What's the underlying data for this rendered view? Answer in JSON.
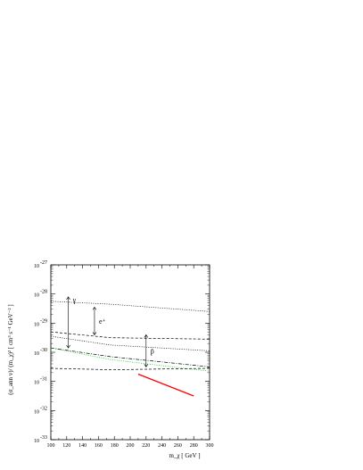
{
  "chart_data": {
    "type": "line",
    "xlabel": "m_χ [ GeV ]",
    "ylabel": "(σ_ann v)/ (m_χ)² [ cm³ s⁻¹ GeV⁻² ]",
    "xlim": [
      100,
      300
    ],
    "ylim_log10": [
      -33,
      -27
    ],
    "x_ticks": [
      "100",
      "120",
      "140",
      "160",
      "180",
      "200",
      "220",
      "240",
      "260",
      "280",
      "300"
    ],
    "y_ticks": [
      {
        "base": "10",
        "exp": "-27",
        "v": -27
      },
      {
        "base": "10",
        "exp": "-28",
        "v": -28
      },
      {
        "base": "10",
        "exp": "-29",
        "v": -29
      },
      {
        "base": "10",
        "exp": "-30",
        "v": -30
      },
      {
        "base": "10",
        "exp": "-31",
        "v": -31
      },
      {
        "base": "10",
        "exp": "-32",
        "v": -32
      },
      {
        "base": "10",
        "exp": "-33",
        "v": -33
      }
    ],
    "grid": false,
    "series": [
      {
        "style": "dotted",
        "color": "#000000",
        "x": [
          100,
          175,
          300
        ],
        "log10_y": [
          -28.25,
          -28.35,
          -28.6
        ]
      },
      {
        "style": "dashed",
        "color": "#000000",
        "x": [
          100,
          175,
          300
        ],
        "log10_y": [
          -29.3,
          -29.5,
          -29.55
        ]
      },
      {
        "style": "dotted",
        "color": "#000000",
        "x": [
          100,
          175,
          300
        ],
        "log10_y": [
          -29.45,
          -29.75,
          -29.95
        ]
      },
      {
        "style": "dash-dot",
        "color": "#000000",
        "x": [
          100,
          175,
          300
        ],
        "log10_y": [
          -29.85,
          -30.15,
          -30.5
        ]
      },
      {
        "style": "dotted",
        "color": "#00cc00",
        "x": [
          100,
          175,
          300
        ],
        "log10_y": [
          -29.85,
          -30.25,
          -30.65
        ]
      },
      {
        "style": "dashed",
        "color": "#000000",
        "x": [
          100,
          175,
          300
        ],
        "log10_y": [
          -30.55,
          -30.6,
          -30.55
        ]
      },
      {
        "style": "solid",
        "color": "#ff0000",
        "x": [
          210,
          280
        ],
        "log10_y": [
          -30.75,
          -31.5
        ]
      }
    ],
    "annotations": [
      {
        "label": "γ",
        "x": 122,
        "from": -28.1,
        "to": -29.85
      },
      {
        "label": "e⁺",
        "x": 155,
        "from": -28.45,
        "to": -29.4
      },
      {
        "label": "p̄",
        "x": 220,
        "from": -29.4,
        "to": -30.5
      }
    ]
  }
}
